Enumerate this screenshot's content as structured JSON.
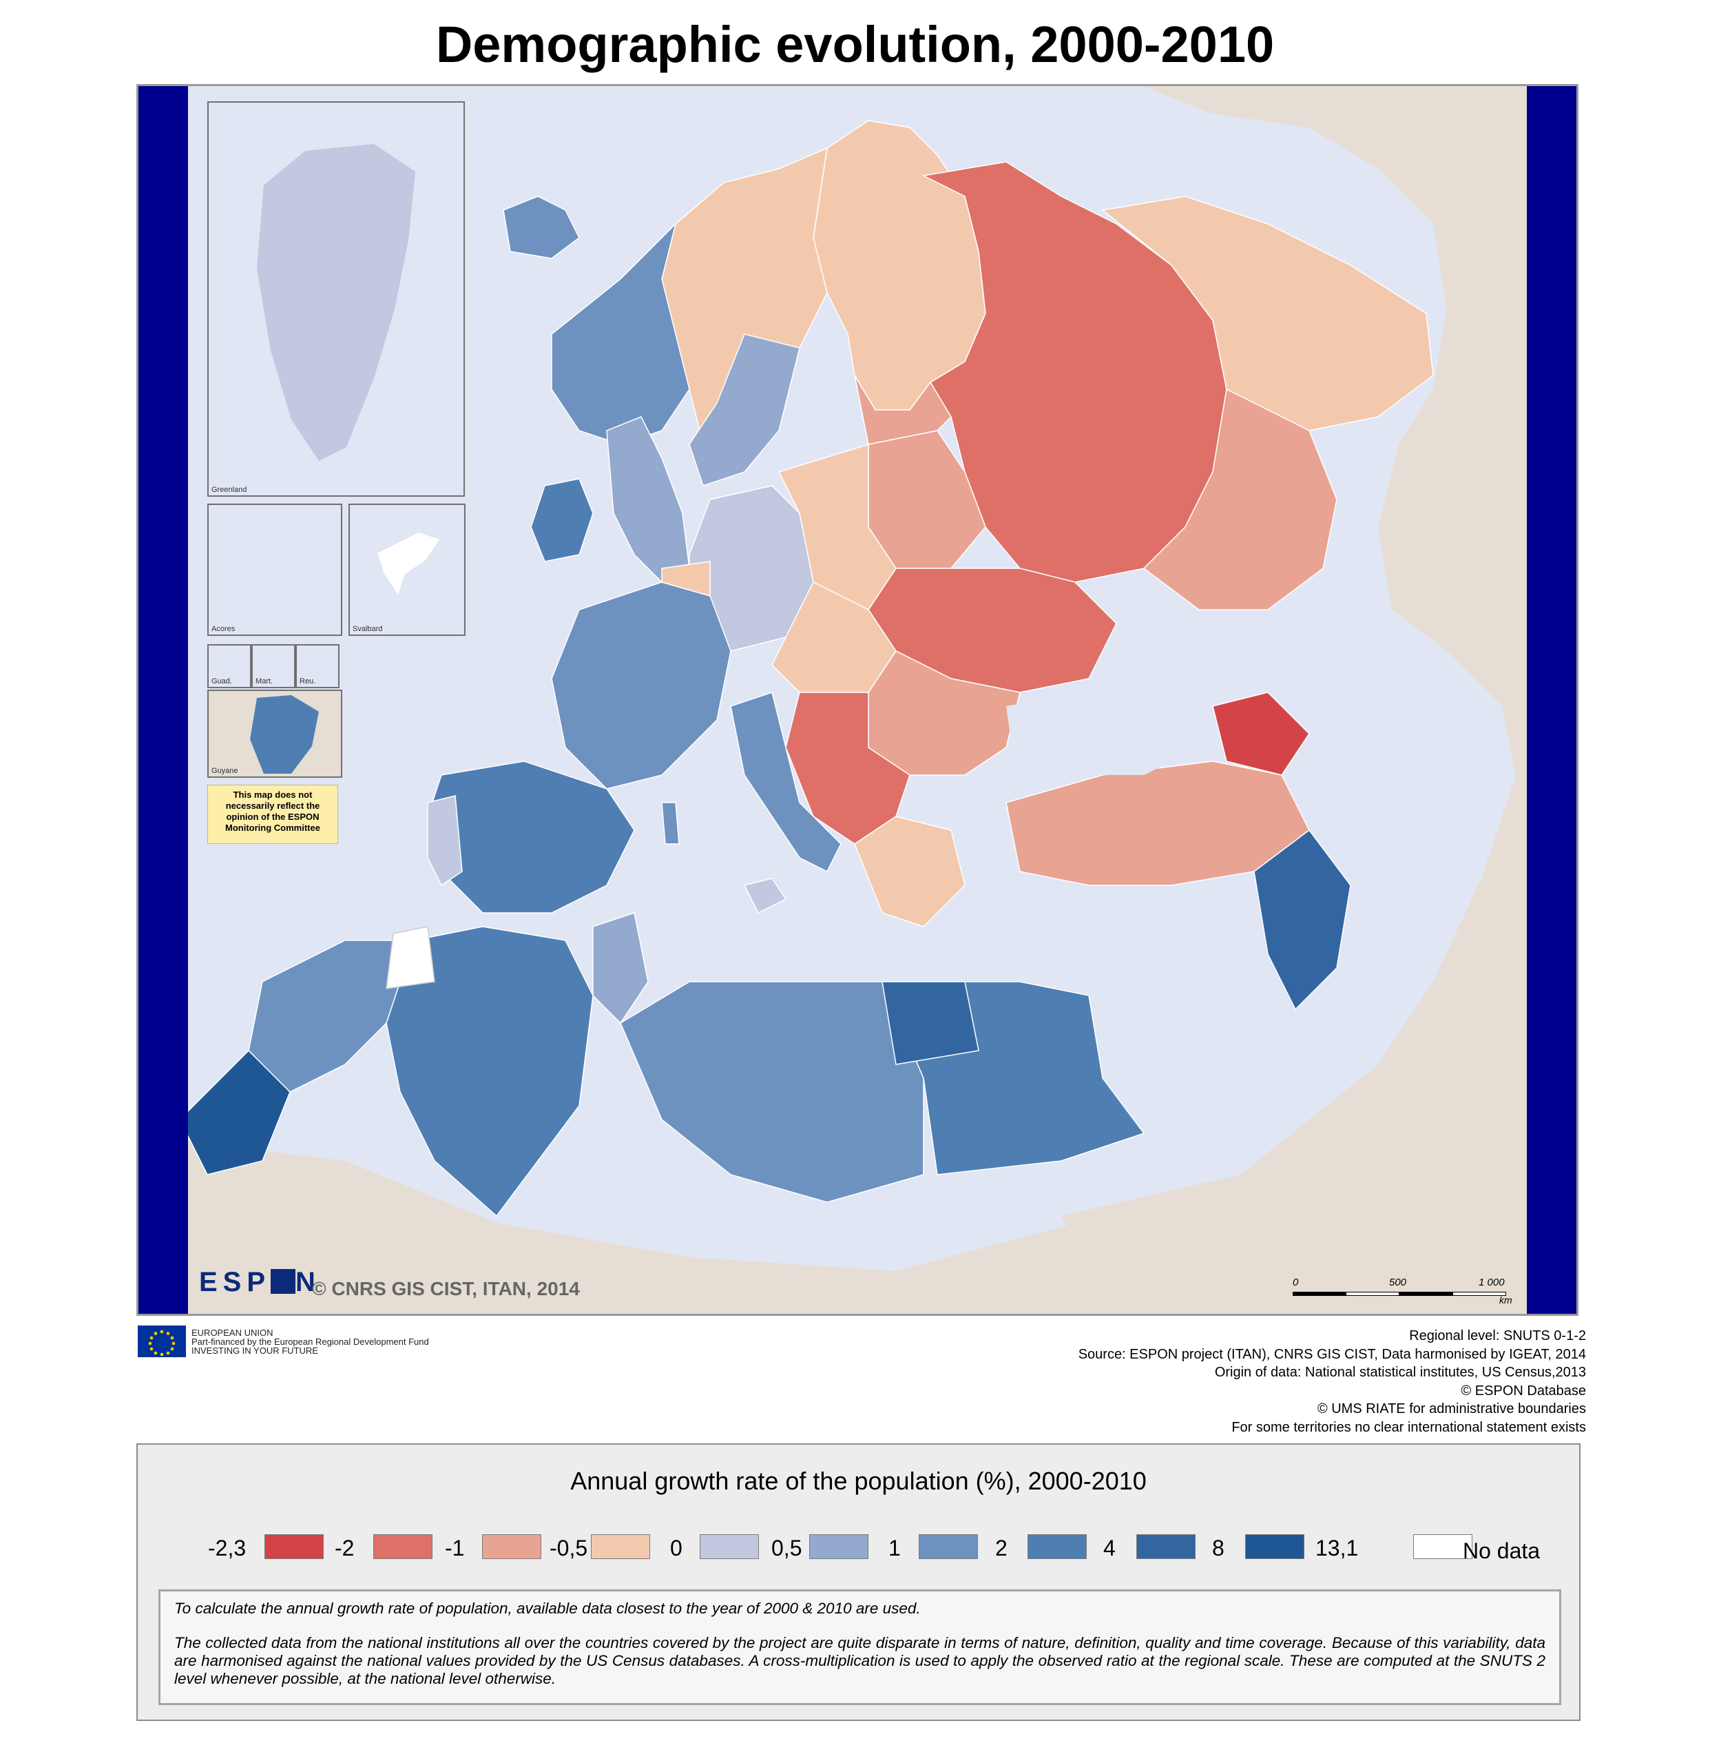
{
  "title": "Demographic evolution, 2000-2010",
  "insets": {
    "greenland": "Greenland",
    "acores": "Acores",
    "svalbard": "Svalbard",
    "guadeloupe": "Guad.",
    "martinique": "Mart.",
    "reunion": "Reu.",
    "guyane": "Guyane"
  },
  "disclaimer": "This map does not necessarily reflect the opinion of the ESPON Monitoring Committee",
  "espon_logo": "ESP N",
  "copyright": "© CNRS GIS CIST, ITAN, 2014",
  "scale": {
    "zero": "0",
    "mid": "500",
    "max": "1 000",
    "unit": "km"
  },
  "eu_logo": {
    "line1": "EUROPEAN UNION",
    "line2": "Part-financed by the European Regional Development Fund",
    "line3": "INVESTING IN YOUR FUTURE"
  },
  "source_lines": [
    "Regional level: SNUTS 0-1-2",
    "Source: ESPON project (ITAN), CNRS GIS CIST, Data harmonised by IGEAT, 2014",
    "Origin of data: National statistical institutes, US Census,2013",
    "© ESPON Database",
    "© UMS RIATE for administrative boundaries",
    "For some territories no clear international statement exists"
  ],
  "legend": {
    "title": "Annual growth rate of the population (%), 2000-2010",
    "breaks": [
      "-2,3",
      "-2",
      "-1",
      "-0,5",
      "0",
      "0,5",
      "1",
      "2",
      "4",
      "8",
      "13,1"
    ],
    "class_colors": [
      "#d24448",
      "#de7068",
      "#e9a392",
      "#f3c9ae",
      "#c2c8e0",
      "#93a9ce",
      "#6d92c0",
      "#4f7fb2",
      "#3366a0",
      "#1f5795"
    ],
    "no_data_color": "#ffffff",
    "no_data_label": "No data"
  },
  "notes": {
    "line1": "To calculate the annual growth rate of population, available data closest to the year of 2000 & 2010 are used.",
    "line2": "The collected data from the national institutions all over the countries covered by the project are quite disparate in terms of nature, definition, quality and time coverage. Because of this variability, data are harmonised against the national values provided by the US Census databases. A cross-multiplication is used to apply the observed ratio at the regional scale. These are computed at the SNUTS 2 level whenever possible, at the national level otherwise."
  },
  "colors": {
    "sea": "#e1e6f5",
    "land_outside": "#e6ddd4",
    "frame_side": "#00008f"
  }
}
